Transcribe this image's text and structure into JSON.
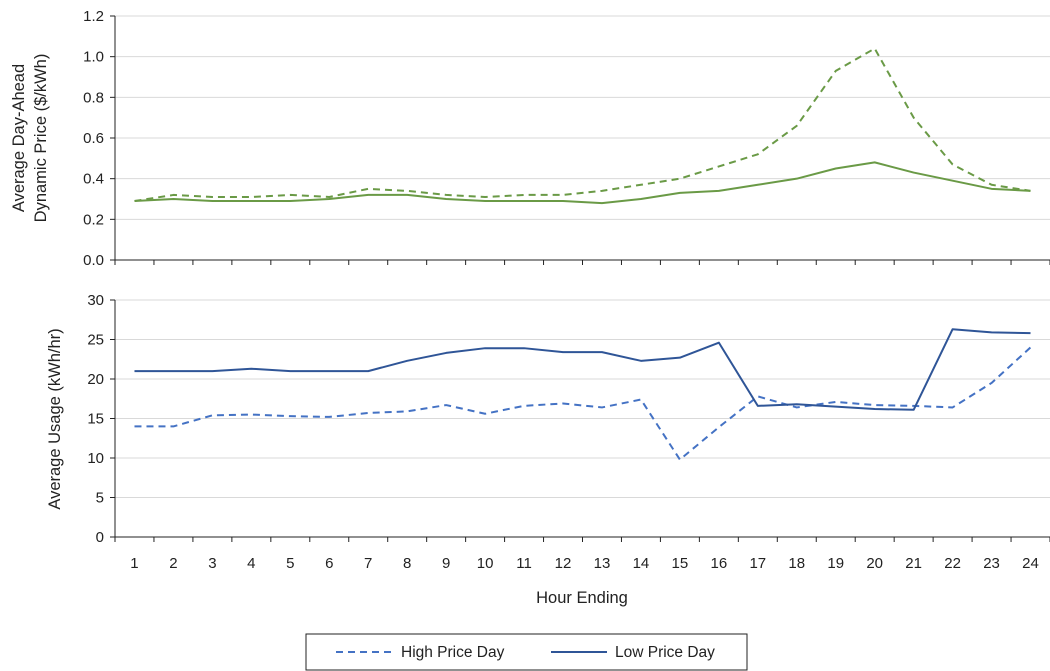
{
  "chart_data": [
    {
      "type": "line",
      "xlabel": "",
      "ylabel_line1": "Average Day-Ahead",
      "ylabel_line2": "Dynamic Price ($/kWh)",
      "x": [
        1,
        2,
        3,
        4,
        5,
        6,
        7,
        8,
        9,
        10,
        11,
        12,
        13,
        14,
        15,
        16,
        17,
        18,
        19,
        20,
        21,
        22,
        23,
        24
      ],
      "ylim": [
        0,
        1.2
      ],
      "yticks": [
        "0.0",
        "0.2",
        "0.4",
        "0.6",
        "0.8",
        "1.0",
        "1.2"
      ],
      "grid": true,
      "series": [
        {
          "name": "High Price Day",
          "style": "dashed",
          "color": "#6a9a46",
          "values": [
            0.29,
            0.32,
            0.31,
            0.31,
            0.32,
            0.31,
            0.35,
            0.34,
            0.32,
            0.31,
            0.32,
            0.32,
            0.34,
            0.37,
            0.4,
            0.46,
            0.52,
            0.66,
            0.93,
            1.04,
            0.7,
            0.47,
            0.37,
            0.34
          ]
        },
        {
          "name": "Low Price Day",
          "style": "solid",
          "color": "#6a9a46",
          "values": [
            0.29,
            0.3,
            0.29,
            0.29,
            0.29,
            0.3,
            0.32,
            0.32,
            0.3,
            0.29,
            0.29,
            0.29,
            0.28,
            0.3,
            0.33,
            0.34,
            0.37,
            0.4,
            0.45,
            0.48,
            0.43,
            0.39,
            0.35,
            0.34
          ]
        }
      ]
    },
    {
      "type": "line",
      "xlabel": "Hour Ending",
      "ylabel": "Average Usage (kWh/hr)",
      "x": [
        1,
        2,
        3,
        4,
        5,
        6,
        7,
        8,
        9,
        10,
        11,
        12,
        13,
        14,
        15,
        16,
        17,
        18,
        19,
        20,
        21,
        22,
        23,
        24
      ],
      "xticks": [
        "1",
        "2",
        "3",
        "4",
        "5",
        "6",
        "7",
        "8",
        "9",
        "10",
        "11",
        "12",
        "13",
        "14",
        "15",
        "16",
        "17",
        "18",
        "19",
        "20",
        "21",
        "22",
        "23",
        "24"
      ],
      "ylim": [
        0,
        30
      ],
      "yticks": [
        "0",
        "5",
        "10",
        "15",
        "20",
        "25",
        "30"
      ],
      "grid": true,
      "series": [
        {
          "name": "High Price Day",
          "style": "dashed",
          "color": "#4472c4",
          "values": [
            14.0,
            14.0,
            15.4,
            15.5,
            15.3,
            15.2,
            15.7,
            15.9,
            16.7,
            15.6,
            16.6,
            16.9,
            16.4,
            17.4,
            9.8,
            13.9,
            17.8,
            16.4,
            17.1,
            16.7,
            16.6,
            16.4,
            19.5,
            24.0
          ]
        },
        {
          "name": "Low Price Day",
          "style": "solid",
          "color": "#2f5597",
          "values": [
            21.0,
            21.0,
            21.0,
            21.3,
            21.0,
            21.0,
            21.0,
            22.3,
            23.3,
            23.9,
            23.9,
            23.4,
            23.4,
            22.3,
            22.7,
            24.6,
            16.6,
            16.8,
            16.5,
            16.2,
            16.1,
            26.3,
            25.9,
            25.8
          ]
        }
      ]
    }
  ],
  "legend": {
    "position": "bottom",
    "items": [
      {
        "label": "High Price Day",
        "style": "dashed",
        "color": "#4472c4"
      },
      {
        "label": "Low Price Day",
        "style": "solid",
        "color": "#2f5597"
      }
    ]
  }
}
